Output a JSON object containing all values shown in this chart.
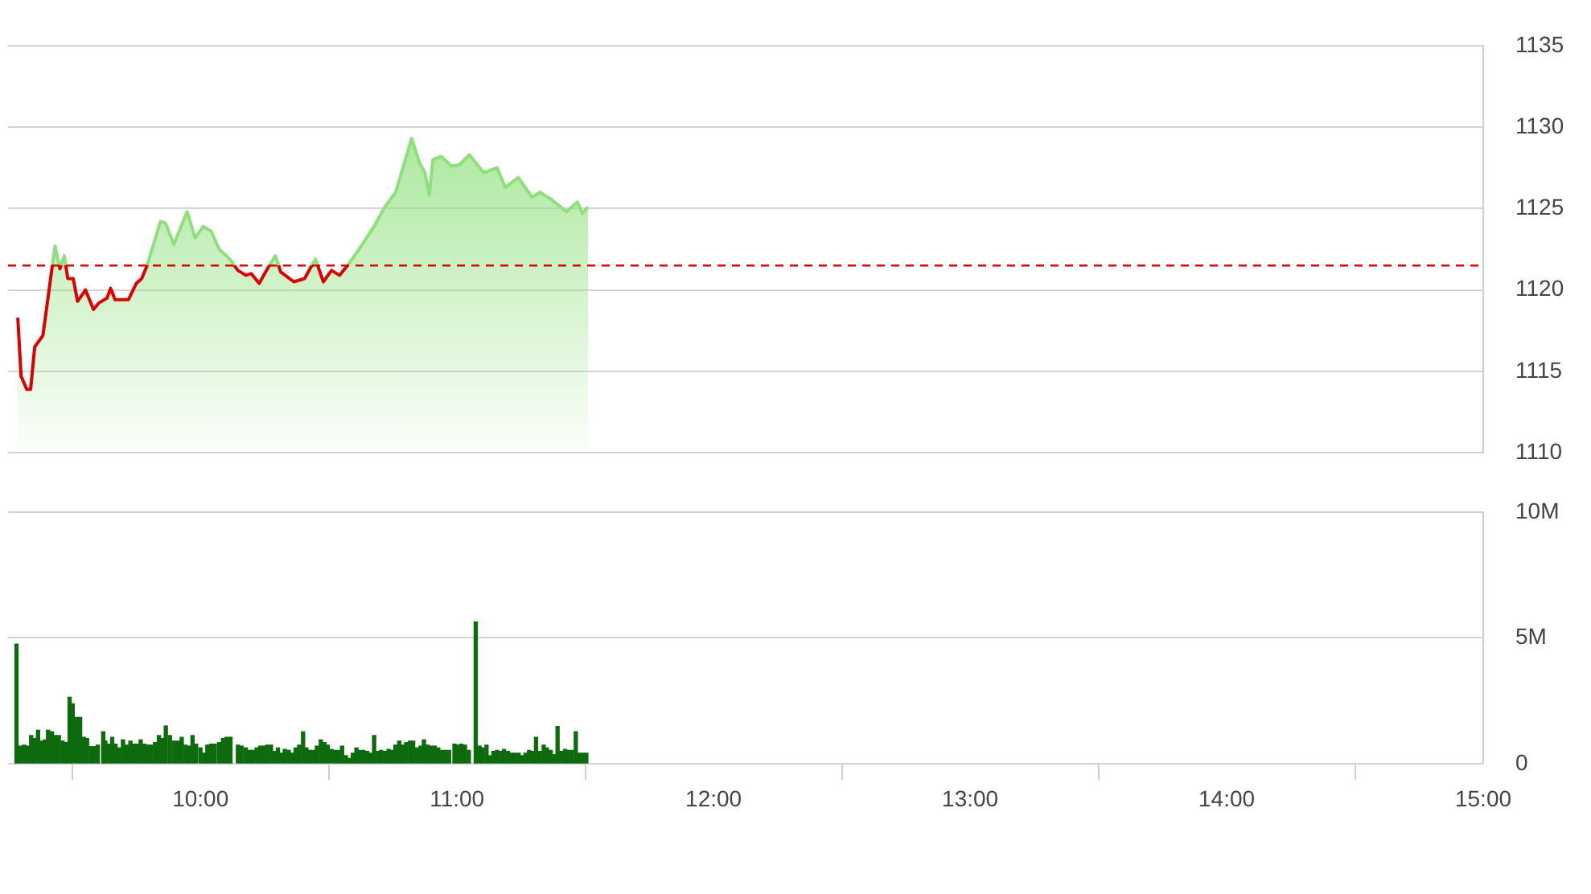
{
  "chart_data": [
    {
      "type": "area",
      "series": [
        {
          "color": "#8fe07c",
          "x": [
            9.288,
            9.301,
            9.323,
            9.338,
            9.354,
            9.386,
            9.433,
            9.452,
            9.469,
            9.483,
            9.504,
            9.521,
            9.552,
            9.583,
            9.604,
            9.636,
            9.65,
            9.667,
            9.719,
            9.75,
            9.771,
            9.792,
            9.844,
            9.864,
            9.896,
            9.948,
            9.979,
            10.011,
            10.042,
            10.073,
            10.114,
            10.146,
            10.177,
            10.198,
            10.229,
            10.261,
            10.292,
            10.313,
            10.364,
            10.406,
            10.448,
            10.479,
            10.511,
            10.542,
            10.573,
            10.614,
            10.677,
            10.719,
            10.761,
            10.823,
            10.854,
            10.875,
            10.892,
            10.906,
            10.938,
            10.979,
            11.011,
            11.048,
            11.104,
            11.156,
            11.188,
            11.239,
            11.292,
            11.323,
            11.364,
            11.427,
            11.469,
            11.489,
            11.511
          ],
          "values": [
            1118.3,
            1114.7,
            1113.9,
            1113.9,
            1116.5,
            1117.2,
            1122.7,
            1121.3,
            1122.1,
            1120.7,
            1120.7,
            1119.3,
            1120.0,
            1118.8,
            1119.2,
            1119.5,
            1120.1,
            1119.4,
            1119.4,
            1120.4,
            1120.7,
            1121.5,
            1124.2,
            1124.1,
            1122.8,
            1124.8,
            1123.2,
            1123.9,
            1123.6,
            1122.5,
            1121.9,
            1121.2,
            1120.9,
            1121.0,
            1120.4,
            1121.3,
            1122.1,
            1121.1,
            1120.5,
            1120.7,
            1121.9,
            1120.5,
            1121.2,
            1120.9,
            1121.5,
            1122.4,
            1123.9,
            1125.1,
            1126.0,
            1129.3,
            1127.8,
            1127.2,
            1125.8,
            1128.0,
            1128.2,
            1127.6,
            1127.7,
            1128.3,
            1127.2,
            1127.5,
            1126.3,
            1126.9,
            1125.7,
            1126.0,
            1125.6,
            1124.8,
            1125.4,
            1124.7,
            1125.1
          ]
        }
      ],
      "xlim": [
        9.25,
        15
      ],
      "ylim": [
        1110,
        1135
      ],
      "yticks": [
        1110,
        1115,
        1120,
        1125,
        1130,
        1135
      ],
      "grid": "y",
      "tick_labels": "y",
      "ref_lines": [
        {
          "axis": "y",
          "value": 1121.5,
          "color": "#dd0000",
          "line_style": "dashed"
        }
      ]
    },
    {
      "type": "bar",
      "series": [
        {
          "color": "#0d6b0d",
          "x": [
            9.283,
            9.298,
            9.313,
            9.327,
            9.34,
            9.352,
            9.367,
            9.381,
            9.394,
            9.406,
            9.421,
            9.433,
            9.448,
            9.463,
            9.475,
            9.49,
            9.502,
            9.517,
            9.531,
            9.546,
            9.558,
            9.573,
            9.585,
            9.6,
            9.621,
            9.629,
            9.642,
            9.656,
            9.669,
            9.683,
            9.698,
            9.713,
            9.727,
            9.74,
            9.754,
            9.767,
            9.781,
            9.794,
            9.808,
            9.823,
            9.838,
            9.85,
            9.865,
            9.881,
            9.898,
            9.913,
            9.927,
            9.942,
            9.954,
            9.969,
            9.983,
            10.0,
            10.015,
            10.027,
            10.042,
            10.056,
            10.073,
            10.088,
            10.102,
            10.117,
            10.146,
            10.16,
            10.177,
            10.192,
            10.204,
            10.219,
            10.233,
            10.248,
            10.26,
            10.275,
            10.288,
            10.302,
            10.317,
            10.329,
            10.344,
            10.356,
            10.371,
            10.385,
            10.4,
            10.413,
            10.427,
            10.442,
            10.454,
            10.469,
            10.483,
            10.496,
            10.51,
            10.525,
            10.538,
            10.552,
            10.567,
            10.579,
            10.594,
            10.608,
            10.621,
            10.635,
            10.65,
            10.663,
            10.677,
            10.692,
            10.704,
            10.719,
            10.733,
            10.746,
            10.76,
            10.775,
            10.788,
            10.802,
            10.817,
            10.829,
            10.844,
            10.858,
            10.871,
            10.885,
            10.9,
            10.913,
            10.927,
            10.942,
            10.954,
            10.969,
            10.99,
            11.004,
            11.017,
            11.031,
            11.046,
            11.073,
            11.088,
            11.1,
            11.115,
            11.129,
            11.142,
            11.156,
            11.171,
            11.183,
            11.198,
            11.213,
            11.225,
            11.24,
            11.254,
            11.267,
            11.281,
            11.296,
            11.308,
            11.323,
            11.338,
            11.35,
            11.365,
            11.379,
            11.392,
            11.406,
            11.421,
            11.433,
            11.448,
            11.463,
            11.475,
            11.49,
            11.504
          ],
          "values": [
            4.75,
            0.7,
            0.74,
            0.7,
            1.12,
            1.0,
            1.33,
            0.9,
            0.95,
            1.33,
            1.27,
            1.12,
            1.12,
            0.9,
            0.84,
            2.64,
            2.38,
            1.84,
            1.84,
            1.05,
            1.0,
            0.68,
            0.68,
            0.74,
            1.27,
            0.9,
            0.78,
            1.05,
            0.78,
            0.63,
            0.95,
            0.74,
            0.9,
            0.78,
            0.78,
            0.95,
            0.78,
            0.74,
            0.74,
            0.84,
            1.12,
            1.0,
            1.5,
            1.12,
            0.9,
            0.9,
            1.05,
            0.74,
            0.7,
            1.12,
            0.78,
            0.63,
            0.42,
            0.74,
            0.78,
            0.78,
            0.84,
            1.0,
            1.05,
            1.05,
            0.74,
            0.7,
            0.63,
            0.53,
            0.53,
            0.63,
            0.7,
            0.7,
            0.74,
            0.74,
            0.49,
            0.63,
            0.42,
            0.57,
            0.53,
            0.42,
            0.63,
            0.74,
            1.27,
            0.63,
            0.53,
            0.53,
            0.7,
            0.95,
            0.84,
            0.74,
            0.57,
            0.53,
            0.53,
            0.7,
            0.32,
            0.21,
            0.42,
            0.63,
            0.53,
            0.53,
            0.49,
            0.42,
            1.12,
            0.49,
            0.53,
            0.49,
            0.57,
            0.53,
            0.74,
            0.9,
            0.74,
            0.84,
            0.9,
            0.9,
            0.63,
            0.7,
            0.95,
            0.74,
            0.7,
            0.7,
            0.63,
            0.53,
            0.53,
            0.53,
            0.78,
            0.74,
            0.78,
            0.74,
            0.53,
            5.63,
            0.7,
            0.63,
            0.74,
            0.32,
            0.49,
            0.53,
            0.49,
            0.57,
            0.49,
            0.42,
            0.42,
            0.42,
            0.32,
            0.42,
            0.53,
            0.49,
            1.05,
            0.49,
            0.74,
            0.63,
            0.53,
            0.36,
            1.48,
            0.49,
            0.57,
            0.53,
            0.53,
            1.27,
            0.42,
            0.42,
            0.42
          ]
        }
      ],
      "xlim": [
        9.25,
        15
      ],
      "xticks": [
        {
          "value": 10,
          "label": "10:00"
        },
        {
          "value": 11,
          "label": "11:00"
        },
        {
          "value": 12,
          "label": "12:00"
        },
        {
          "value": 13,
          "label": "13:00"
        },
        {
          "value": 14,
          "label": "14:00"
        },
        {
          "value": 15,
          "label": "15:00"
        }
      ],
      "ylim": [
        0,
        10
      ],
      "yticks": [
        0,
        {
          "value": 5,
          "label": "5M"
        },
        {
          "value": 10,
          "label": "10M"
        }
      ],
      "grid": "y"
    }
  ]
}
